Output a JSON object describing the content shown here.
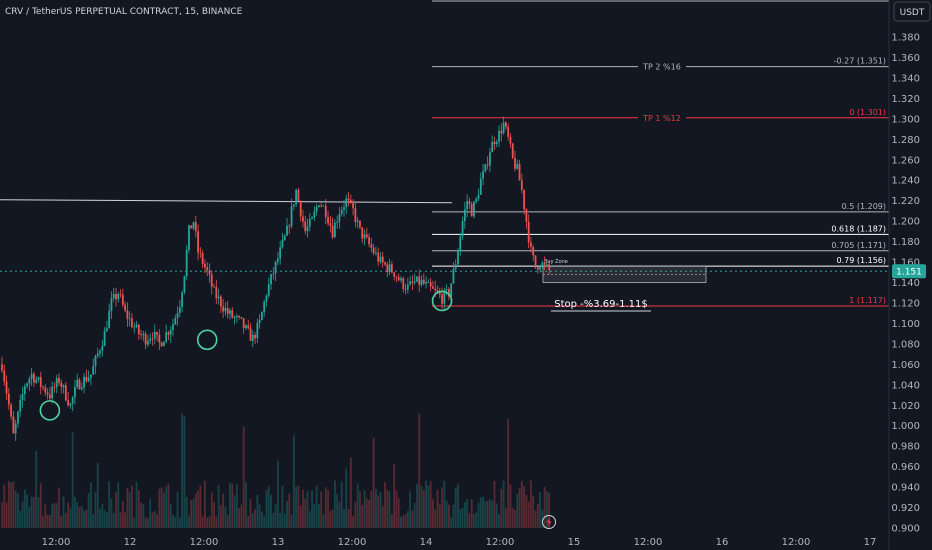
{
  "header": {
    "symbol_title": "CRV / TetherUS PERPETUAL CONTRACT, 15, BINANCE",
    "currency_button": "USDT"
  },
  "chart_data": {
    "type": "candlestick",
    "title": "CRV / TetherUS PERPETUAL CONTRACT, 15, BINANCE",
    "y_ticks": [
      "1.380",
      "1.360",
      "1.340",
      "1.320",
      "1.300",
      "1.280",
      "1.260",
      "1.240",
      "1.220",
      "1.200",
      "1.180",
      "1.160",
      "1.140",
      "1.120",
      "1.100",
      "1.080",
      "1.060",
      "1.040",
      "1.020",
      "1.000",
      "0.980",
      "0.960",
      "0.940",
      "0.920",
      "0.900"
    ],
    "ylim": [
      0.9,
      1.39
    ],
    "x_ticks": [
      "12:00",
      "12",
      "12:00",
      "13",
      "12:00",
      "14",
      "12:00",
      "15",
      "12:00",
      "16",
      "12:00",
      "17"
    ],
    "last_price": "1.151",
    "price_path": [
      [
        0,
        1.06
      ],
      [
        3,
        1.02
      ],
      [
        5,
        0.99
      ],
      [
        7,
        1.01
      ],
      [
        10,
        1.04
      ],
      [
        13,
        1.05
      ],
      [
        17,
        1.04
      ],
      [
        21,
        1.03
      ],
      [
        25,
        1.045
      ],
      [
        28,
        1.03
      ],
      [
        30,
        1.02
      ],
      [
        33,
        1.04
      ],
      [
        36,
        1.045
      ],
      [
        39,
        1.05
      ],
      [
        42,
        1.07
      ],
      [
        45,
        1.09
      ],
      [
        48,
        1.12
      ],
      [
        51,
        1.13
      ],
      [
        54,
        1.11
      ],
      [
        57,
        1.1
      ],
      [
        60,
        1.09
      ],
      [
        63,
        1.085
      ],
      [
        66,
        1.09
      ],
      [
        69,
        1.08
      ],
      [
        72,
        1.09
      ],
      [
        75,
        1.1
      ],
      [
        78,
        1.12
      ],
      [
        80,
        1.15
      ],
      [
        82,
        1.19
      ],
      [
        84,
        1.2
      ],
      [
        86,
        1.17
      ],
      [
        88,
        1.16
      ],
      [
        90,
        1.15
      ],
      [
        93,
        1.13
      ],
      [
        96,
        1.12
      ],
      [
        99,
        1.11
      ],
      [
        102,
        1.105
      ],
      [
        105,
        1.1
      ],
      [
        108,
        1.09
      ],
      [
        110,
        1.085
      ],
      [
        113,
        1.1
      ],
      [
        116,
        1.13
      ],
      [
        119,
        1.15
      ],
      [
        122,
        1.17
      ],
      [
        125,
        1.19
      ],
      [
        127,
        1.21
      ],
      [
        129,
        1.23
      ],
      [
        131,
        1.21
      ],
      [
        133,
        1.19
      ],
      [
        136,
        1.2
      ],
      [
        139,
        1.22
      ],
      [
        142,
        1.21
      ],
      [
        145,
        1.19
      ],
      [
        148,
        1.21
      ],
      [
        151,
        1.22
      ],
      [
        154,
        1.21
      ],
      [
        157,
        1.19
      ],
      [
        160,
        1.18
      ],
      [
        163,
        1.17
      ],
      [
        166,
        1.16
      ],
      [
        169,
        1.155
      ],
      [
        172,
        1.15
      ],
      [
        175,
        1.14
      ],
      [
        178,
        1.135
      ],
      [
        181,
        1.14
      ],
      [
        184,
        1.14
      ],
      [
        187,
        1.135
      ],
      [
        190,
        1.13
      ],
      [
        193,
        1.125
      ],
      [
        196,
        1.13
      ],
      [
        199,
        1.16
      ],
      [
        202,
        1.2
      ],
      [
        204,
        1.22
      ],
      [
        206,
        1.21
      ],
      [
        208,
        1.22
      ],
      [
        210,
        1.24
      ],
      [
        212,
        1.25
      ],
      [
        214,
        1.27
      ],
      [
        216,
        1.28
      ],
      [
        218,
        1.285
      ],
      [
        220,
        1.295
      ],
      [
        222,
        1.28
      ],
      [
        224,
        1.26
      ],
      [
        226,
        1.25
      ],
      [
        228,
        1.23
      ],
      [
        230,
        1.2
      ],
      [
        232,
        1.17
      ],
      [
        234,
        1.155
      ],
      [
        236,
        1.16
      ],
      [
        238,
        1.155
      ],
      [
        240,
        1.152
      ]
    ],
    "fib_levels": [
      {
        "label": "-0.27 (1.351)",
        "value": 1.351,
        "color": "#b2b5be"
      },
      {
        "label": "0 (1.301)",
        "value": 1.301,
        "color": "#f23645"
      },
      {
        "label": "0.5 (1.209)",
        "value": 1.209,
        "color": "#b2b5be"
      },
      {
        "label": "0.618 (1.187)",
        "value": 1.187,
        "color": "#ffffff"
      },
      {
        "label": "0.705 (1.171)",
        "value": 1.171,
        "color": "#b2b5be"
      },
      {
        "label": "0.79 (1.156)",
        "value": 1.156,
        "color": "#ffffff"
      },
      {
        "label": "1 (1.117)",
        "value": 1.117,
        "color": "#f23645"
      }
    ],
    "tp_labels": [
      {
        "label": "TP 2 %16",
        "value": 1.351,
        "color": "#b2b5be"
      },
      {
        "label": "TP 1 %12",
        "value": 1.301,
        "color": "#f23645"
      }
    ],
    "horizontal_level": 1.219,
    "buy_zone": {
      "label": "Buy Zone",
      "top": 1.156,
      "bottom": 1.14
    },
    "stop_label": "Stop -%3.69-1.11$",
    "circled_lows": [
      {
        "bar": 21,
        "value": 1.015
      },
      {
        "bar": 90,
        "value": 1.084
      },
      {
        "bar": 193,
        "value": 1.122
      }
    ],
    "colors": {
      "up": "#26a69a",
      "down": "#ef5350",
      "price_line": "#26a69a",
      "fib_red": "#f23645",
      "background": "#131722"
    }
  }
}
